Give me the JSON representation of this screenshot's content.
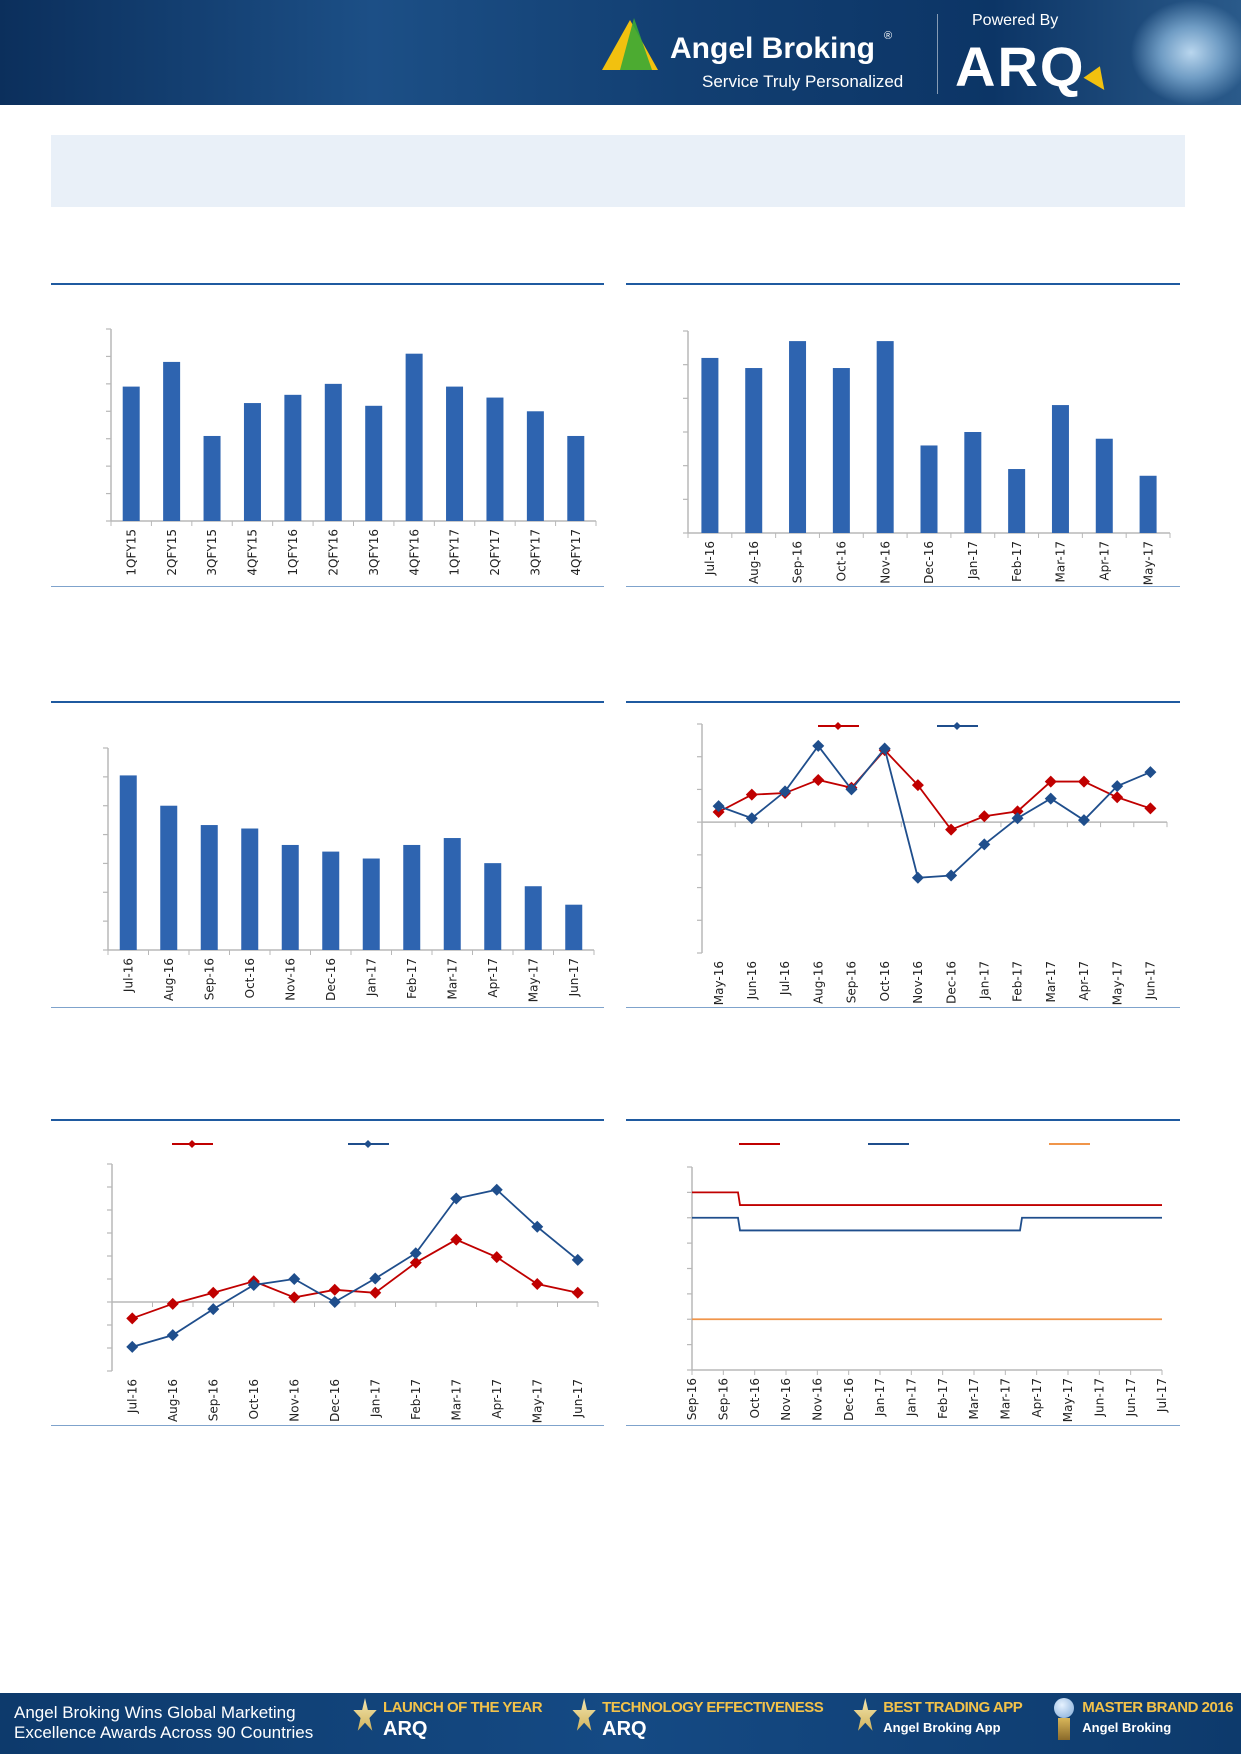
{
  "header": {
    "brand_name": "Angel Broking",
    "brand_registered": "®",
    "brand_tagline": "Service Truly Personalized",
    "powered_by": "Powered By",
    "arq_logo": "ARQ"
  },
  "footer": {
    "message_line1": "Angel Broking Wins Global Marketing",
    "message_line2": "Excellence Awards Across 90 Countries",
    "awards": [
      {
        "title": "LAUNCH OF THE YEAR",
        "subtitle": "ARQ"
      },
      {
        "title": "TECHNOLOGY EFFECTIVENESS",
        "subtitle": "ARQ"
      },
      {
        "title": "BEST TRADING APP",
        "subtitle": "Angel Broking App"
      },
      {
        "title": "MASTER BRAND 2016",
        "subtitle": "Angel Broking"
      }
    ]
  },
  "colors": {
    "bar": "#2e64b0",
    "red": "#c00000",
    "blue": "#1f4e8c",
    "orange": "#f0954a",
    "rule": "#1f5aa0"
  },
  "chart_data": [
    {
      "type": "bar",
      "categories": [
        "1QFY15",
        "2QFY15",
        "3QFY15",
        "4QFY15",
        "1QFY16",
        "2QFY16",
        "3QFY16",
        "4QFY16",
        "1QFY17",
        "2QFY17",
        "3QFY17",
        "4QFY17"
      ],
      "values": [
        4.9,
        5.8,
        3.1,
        4.3,
        4.6,
        5.0,
        4.2,
        6.1,
        4.9,
        4.5,
        4.0,
        3.1
      ],
      "ylim": [
        0,
        7
      ],
      "ytick_step": 1,
      "grid": false
    },
    {
      "type": "bar",
      "categories": [
        "Jul-16",
        "Aug-16",
        "Sep-16",
        "Oct-16",
        "Nov-16",
        "Dec-16",
        "Jan-17",
        "Feb-17",
        "Mar-17",
        "Apr-17",
        "May-17"
      ],
      "values": [
        5.2,
        4.9,
        5.7,
        4.9,
        5.7,
        2.6,
        3.0,
        1.9,
        3.8,
        2.8,
        1.7
      ],
      "ylim": [
        0,
        6
      ],
      "ytick_step": 1,
      "grid": false
    },
    {
      "type": "bar",
      "categories": [
        "Jul-16",
        "Aug-16",
        "Sep-16",
        "Oct-16",
        "Nov-16",
        "Dec-16",
        "Jan-17",
        "Feb-17",
        "Mar-17",
        "Apr-17",
        "May-17",
        "Jun-17"
      ],
      "values": [
        6.05,
        5.0,
        4.33,
        4.21,
        3.64,
        3.41,
        3.17,
        3.64,
        3.88,
        3.01,
        2.21,
        1.57
      ],
      "ylim": [
        0,
        7
      ],
      "ytick_step": 1,
      "grid": false
    },
    {
      "type": "line",
      "categories": [
        "May-16",
        "Jun-16",
        "Jul-16",
        "Aug-16",
        "Sep-16",
        "Oct-16",
        "Nov-16",
        "Dec-16",
        "Jan-17",
        "Feb-17",
        "Mar-17",
        "Apr-17",
        "May-17",
        "Jun-17"
      ],
      "series": [
        {
          "color": "#c00000",
          "values": [
            0.31,
            0.84,
            0.89,
            1.29,
            1.05,
            2.2,
            1.13,
            -0.23,
            0.18,
            0.33,
            1.24,
            1.24,
            0.76,
            0.42
          ]
        },
        {
          "color": "#1f4e8c",
          "values": [
            0.49,
            0.12,
            0.94,
            2.33,
            1.0,
            2.25,
            -1.7,
            -1.63,
            -0.68,
            0.12,
            0.72,
            0.06,
            1.1,
            1.53
          ]
        }
      ],
      "ylim": [
        -4,
        3
      ],
      "ytick_step": 1,
      "grid": false,
      "legend": "top-center",
      "markers": "diamond"
    },
    {
      "type": "line",
      "categories": [
        "Jul-16",
        "Aug-16",
        "Sep-16",
        "Oct-16",
        "Nov-16",
        "Dec-16",
        "Jan-17",
        "Feb-17",
        "Mar-17",
        "Apr-17",
        "May-17",
        "Jun-17"
      ],
      "series": [
        {
          "color": "#c00000",
          "values": [
            -0.71,
            -0.08,
            0.4,
            0.9,
            0.2,
            0.53,
            0.4,
            1.71,
            2.71,
            1.95,
            0.78,
            0.4
          ]
        },
        {
          "color": "#1f4e8c",
          "values": [
            -1.95,
            -1.44,
            -0.31,
            0.74,
            1.0,
            0.0,
            1.02,
            2.12,
            4.5,
            4.88,
            3.27,
            1.83
          ]
        }
      ],
      "ylim": [
        -3,
        6
      ],
      "ytick_step": 1,
      "grid": false,
      "legend": "top-left",
      "markers": "diamond"
    },
    {
      "type": "line",
      "step": true,
      "categories": [
        "Sep-16",
        "Sep-16",
        "Oct-16",
        "Nov-16",
        "Nov-16",
        "Dec-16",
        "Jan-17",
        "Jan-17",
        "Feb-17",
        "Mar-17",
        "Mar-17",
        "Apr-17",
        "May-17",
        "Jun-17",
        "Jun-17",
        "Jul-17"
      ],
      "series": [
        {
          "color": "#c00000",
          "values": [
            6.5,
            6.5,
            6.25,
            6.25,
            6.25,
            6.25,
            6.25,
            6.25,
            6.25,
            6.25,
            6.25,
            6.25,
            6.25,
            6.25,
            6.25,
            6.25
          ]
        },
        {
          "color": "#1f4e8c",
          "values": [
            6.0,
            6.0,
            5.75,
            5.75,
            5.75,
            5.75,
            5.75,
            5.75,
            5.75,
            5.75,
            5.75,
            6.0,
            6.0,
            6.0,
            6.0,
            6.0
          ]
        },
        {
          "color": "#f0954a",
          "values": [
            4.0,
            4.0,
            4.0,
            4.0,
            4.0,
            4.0,
            4.0,
            4.0,
            4.0,
            4.0,
            4.0,
            4.0,
            4.0,
            4.0,
            4.0,
            4.0
          ]
        }
      ],
      "ylim": [
        3,
        7
      ],
      "ytick_step": 0.5,
      "grid": false,
      "legend": "top-center"
    }
  ]
}
